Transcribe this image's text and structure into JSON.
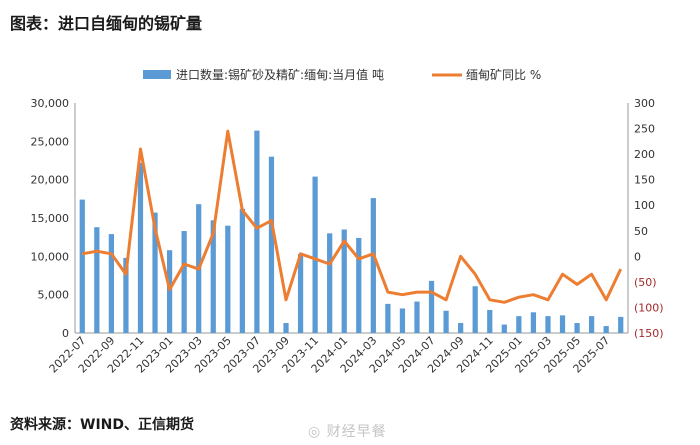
{
  "title": "图表：进口自缅甸的锡矿量",
  "source": "资料来源：WIND、正信期货",
  "watermark": "财经早餐",
  "colors": {
    "bar": "#5b9bd5",
    "line": "#ed7d31",
    "right_axis_neg": "#a52a2a"
  },
  "chart_data": {
    "type": "bar+line",
    "categories": [
      "2022-07",
      "2022-08",
      "2022-09",
      "2022-10",
      "2022-11",
      "2022-12",
      "2023-01",
      "2023-02",
      "2023-03",
      "2023-04",
      "2023-05",
      "2023-06",
      "2023-07",
      "2023-08",
      "2023-09",
      "2023-10",
      "2023-11",
      "2023-12",
      "2024-01",
      "2024-02",
      "2024-03",
      "2024-04",
      "2024-05",
      "2024-06",
      "2024-07",
      "2024-08",
      "2024-09",
      "2024-10",
      "2024-11",
      "2024-12",
      "2025-01",
      "2025-02",
      "2025-03",
      "2025-04",
      "2025-05",
      "2025-06",
      "2025-07",
      "2025-08"
    ],
    "x_tick_labels": [
      "2022-07",
      "2022-09",
      "2022-11",
      "2023-01",
      "2023-03",
      "2023-05",
      "2023-07",
      "2023-09",
      "2023-11",
      "2024-01",
      "2024-03",
      "2024-05",
      "2024-07",
      "2024-09",
      "2024-11",
      "2025-01",
      "2025-03",
      "2025-05",
      "2025-07"
    ],
    "series": [
      {
        "name": "进口数量:锡矿砂及精矿:缅甸:当月值 吨",
        "type": "bar",
        "axis": "left",
        "values": [
          17400,
          13800,
          12900,
          9800,
          22200,
          15700,
          10800,
          13300,
          16800,
          14700,
          14000,
          16200,
          26400,
          23000,
          1300,
          10300,
          20400,
          13000,
          13500,
          12400,
          17600,
          3800,
          3200,
          4100,
          6800,
          2900,
          1300,
          6100,
          3000,
          1100,
          2200,
          2700,
          2200,
          2300,
          1300,
          2200,
          900,
          2100
        ]
      },
      {
        "name": "缅甸矿同比 %",
        "type": "line",
        "axis": "right",
        "values": [
          5,
          10,
          5,
          -35,
          210,
          55,
          -65,
          -15,
          -25,
          45,
          245,
          90,
          55,
          70,
          -85,
          5,
          -5,
          -15,
          30,
          -5,
          5,
          -70,
          -75,
          -70,
          -70,
          -85,
          0,
          -35,
          -85,
          -90,
          -80,
          -75,
          -85,
          -35,
          -55,
          -35,
          -85,
          -25
        ]
      }
    ],
    "left_axis": {
      "min": 0,
      "max": 30000,
      "ticks": [
        "0",
        "5,000",
        "10,000",
        "15,000",
        "20,000",
        "25,000",
        "30,000"
      ]
    },
    "right_axis": {
      "min": -150,
      "max": 300,
      "ticks": [
        "(150)",
        "(100)",
        "(50)",
        "0",
        "50",
        "100",
        "150",
        "200",
        "250",
        "300"
      ]
    }
  }
}
